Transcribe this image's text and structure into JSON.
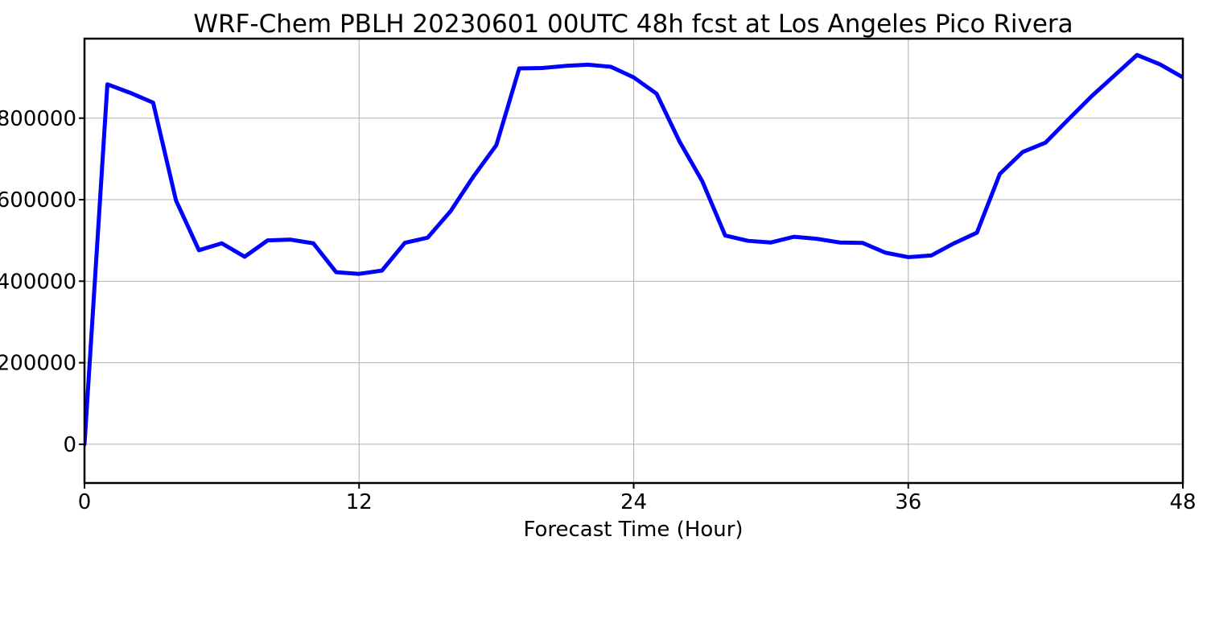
{
  "chart_data": {
    "type": "line",
    "title": "WRF-Chem PBLH  20230601 00UTC 48h fcst at Los Angeles Pico Rivera",
    "xlabel": "Forecast Time (Hour)",
    "ylabel": "",
    "xlim": [
      0,
      48
    ],
    "ylim": [
      -95000,
      995000
    ],
    "xticks": [
      0,
      12,
      24,
      36,
      48
    ],
    "xtick_labels": [
      "0",
      "12",
      "24",
      "36",
      "48"
    ],
    "yticks": [
      0,
      200000,
      400000,
      600000,
      800000
    ],
    "ytick_labels": [
      "0",
      "200000",
      "400000",
      "600000",
      "800000"
    ],
    "grid": true,
    "legend": "none",
    "series": [
      {
        "color": "#0000ff",
        "x": [
          0,
          1,
          2,
          3,
          4,
          5,
          6,
          7,
          8,
          9,
          10,
          11,
          12,
          13,
          14,
          15,
          16,
          17,
          18,
          19,
          20,
          21,
          22,
          23,
          24,
          25,
          26,
          27,
          28,
          29,
          30,
          31,
          32,
          33,
          34,
          35,
          36,
          37,
          38,
          39,
          40,
          41,
          42,
          43,
          44,
          45,
          46,
          47,
          48
        ],
        "y": [
          0,
          883000,
          862000,
          838000,
          598000,
          476000,
          493000,
          460000,
          500000,
          502000,
          493000,
          422000,
          418000,
          426000,
          494000,
          507000,
          572000,
          657000,
          734000,
          922000,
          923000,
          928000,
          931000,
          926000,
          900000,
          860000,
          743000,
          645000,
          512000,
          499000,
          495000,
          509000,
          504000,
          495000,
          494000,
          470000,
          459000,
          463000,
          493000,
          519000,
          663000,
          717000,
          740000,
          797000,
          853000,
          904000,
          955000,
          932000,
          900000
        ]
      }
    ]
  }
}
